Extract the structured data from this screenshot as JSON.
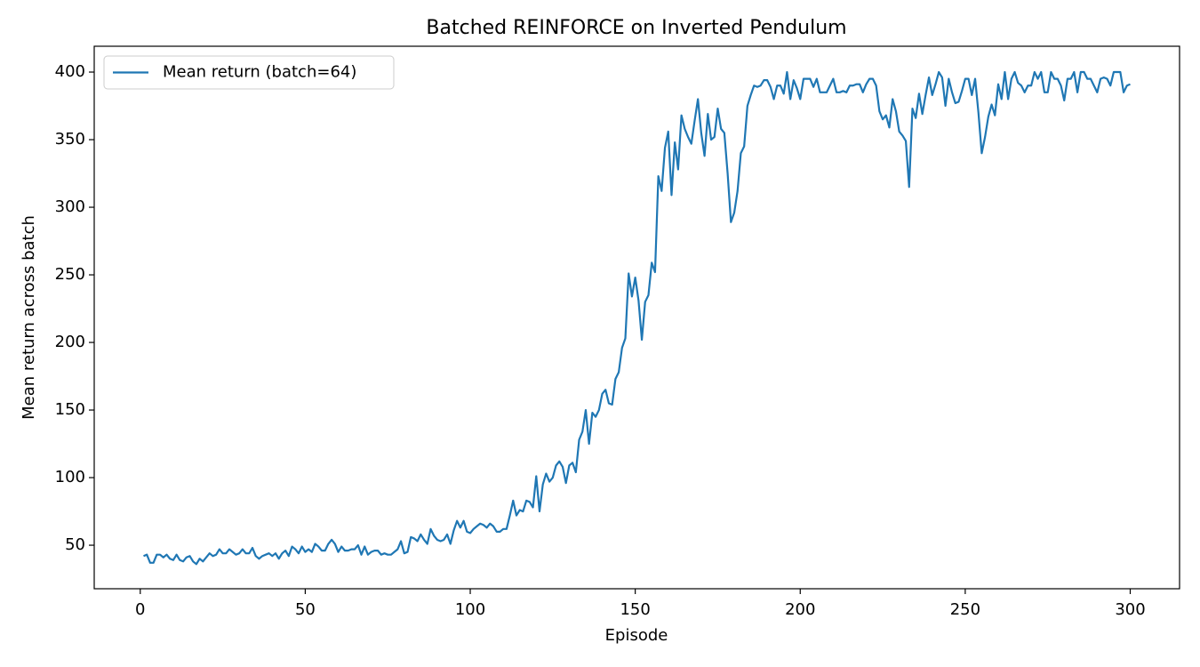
{
  "chart_data": {
    "type": "line",
    "title": "Batched REINFORCE on Inverted Pendulum",
    "x_label": "Episode",
    "y_label": "Mean return across batch",
    "legend": "upper left",
    "grid": false,
    "xlim": [
      -13.95,
      314.95
    ],
    "ylim": [
      17.8,
      419.1
    ],
    "xticks": [
      0,
      50,
      100,
      150,
      200,
      250,
      300
    ],
    "yticks": [
      50,
      100,
      150,
      200,
      250,
      300,
      350,
      400
    ],
    "x": [
      1,
      2,
      3,
      4,
      5,
      6,
      7,
      8,
      9,
      10,
      11,
      12,
      13,
      14,
      15,
      16,
      17,
      18,
      19,
      20,
      21,
      22,
      23,
      24,
      25,
      26,
      27,
      28,
      29,
      30,
      31,
      32,
      33,
      34,
      35,
      36,
      37,
      38,
      39,
      40,
      41,
      42,
      43,
      44,
      45,
      46,
      47,
      48,
      49,
      50,
      51,
      52,
      53,
      54,
      55,
      56,
      57,
      58,
      59,
      60,
      61,
      62,
      63,
      64,
      65,
      66,
      67,
      68,
      69,
      70,
      71,
      72,
      73,
      74,
      75,
      76,
      77,
      78,
      79,
      80,
      81,
      82,
      83,
      84,
      85,
      86,
      87,
      88,
      89,
      90,
      91,
      92,
      93,
      94,
      95,
      96,
      97,
      98,
      99,
      100,
      101,
      102,
      103,
      104,
      105,
      106,
      107,
      108,
      109,
      110,
      111,
      112,
      113,
      114,
      115,
      116,
      117,
      118,
      119,
      120,
      121,
      122,
      123,
      124,
      125,
      126,
      127,
      128,
      129,
      130,
      131,
      132,
      133,
      134,
      135,
      136,
      137,
      138,
      139,
      140,
      141,
      142,
      143,
      144,
      145,
      146,
      147,
      148,
      149,
      150,
      151,
      152,
      153,
      154,
      155,
      156,
      157,
      158,
      159,
      160,
      161,
      162,
      163,
      164,
      165,
      166,
      167,
      168,
      169,
      170,
      171,
      172,
      173,
      174,
      175,
      176,
      177,
      178,
      179,
      180,
      181,
      182,
      183,
      184,
      185,
      186,
      187,
      188,
      189,
      190,
      191,
      192,
      193,
      194,
      195,
      196,
      197,
      198,
      199,
      200,
      201,
      202,
      203,
      204,
      205,
      206,
      207,
      208,
      209,
      210,
      211,
      212,
      213,
      214,
      215,
      216,
      217,
      218,
      219,
      220,
      221,
      222,
      223,
      224,
      225,
      226,
      227,
      228,
      229,
      230,
      231,
      232,
      233,
      234,
      235,
      236,
      237,
      238,
      239,
      240,
      241,
      242,
      243,
      244,
      245,
      246,
      247,
      248,
      249,
      250,
      251,
      252,
      253,
      254,
      255,
      256,
      257,
      258,
      259,
      260,
      261,
      262,
      263,
      264,
      265,
      266,
      267,
      268,
      269,
      270,
      271,
      272,
      273,
      274,
      275,
      276,
      277,
      278,
      279,
      280,
      281,
      282,
      283,
      284,
      285,
      286,
      287,
      288,
      289,
      290,
      291,
      292,
      293,
      294,
      295,
      296,
      297,
      298,
      299,
      300
    ],
    "series": [
      {
        "name": "Mean return (batch=64)",
        "color": "#1f77b4",
        "values": [
          42,
          43,
          37,
          37,
          43,
          43,
          41,
          43,
          40,
          39,
          43,
          39,
          38,
          41,
          42,
          38,
          36,
          40,
          38,
          41,
          44,
          42,
          43,
          47,
          44,
          44,
          47,
          45,
          43,
          44,
          47,
          44,
          44,
          48,
          42,
          40,
          42,
          43,
          44,
          42,
          44,
          40,
          44,
          46,
          42,
          49,
          47,
          44,
          49,
          45,
          47,
          45,
          51,
          49,
          46,
          46,
          51,
          54,
          51,
          45,
          49,
          46,
          46,
          47,
          47,
          50,
          43,
          49,
          43,
          45,
          46,
          46,
          43,
          44,
          43,
          43,
          45,
          47,
          53,
          44,
          45,
          56,
          55,
          53,
          58,
          54,
          51,
          62,
          57,
          54,
          53,
          54,
          58,
          51,
          61,
          68,
          63,
          68,
          60,
          59,
          62,
          64,
          66,
          65,
          63,
          66,
          64,
          60,
          60,
          62,
          62,
          72,
          83,
          72,
          76,
          75,
          83,
          82,
          78,
          101,
          75,
          95,
          103,
          97,
          100,
          109,
          112,
          108,
          96,
          109,
          111,
          104,
          128,
          134,
          150,
          125,
          148,
          145,
          150,
          162,
          165,
          155,
          154,
          173,
          178,
          196,
          203,
          251,
          234,
          248,
          231,
          202,
          230,
          235,
          259,
          252,
          323,
          312,
          344,
          356,
          309,
          348,
          328,
          368,
          358,
          352,
          347,
          364,
          380,
          355,
          338,
          369,
          350,
          352,
          373,
          358,
          355,
          325,
          289,
          296,
          312,
          340,
          345,
          375,
          383,
          390,
          389,
          390,
          394,
          394,
          389,
          380,
          390,
          390,
          384,
          400,
          380,
          394,
          388,
          380,
          395,
          395,
          395,
          389,
          395,
          385,
          385,
          385,
          390,
          395,
          385,
          385,
          386,
          385,
          390,
          390,
          391,
          391,
          385,
          391,
          395,
          395,
          390,
          371,
          365,
          368,
          359,
          380,
          371,
          356,
          353,
          349,
          315,
          373,
          366,
          384,
          369,
          383,
          396,
          383,
          391,
          400,
          396,
          375,
          395,
          385,
          377,
          378,
          386,
          395,
          395,
          383,
          395,
          370,
          340,
          352,
          367,
          376,
          368,
          391,
          380,
          400,
          380,
          395,
          400,
          392,
          390,
          385,
          390,
          390,
          400,
          395,
          400,
          385,
          385,
          400,
          395,
          395,
          390,
          379,
          395,
          395,
          400,
          385,
          400,
          400,
          395,
          395,
          390,
          385,
          395,
          396,
          395,
          390,
          400,
          400,
          400,
          385,
          390,
          391
        ]
      }
    ]
  }
}
